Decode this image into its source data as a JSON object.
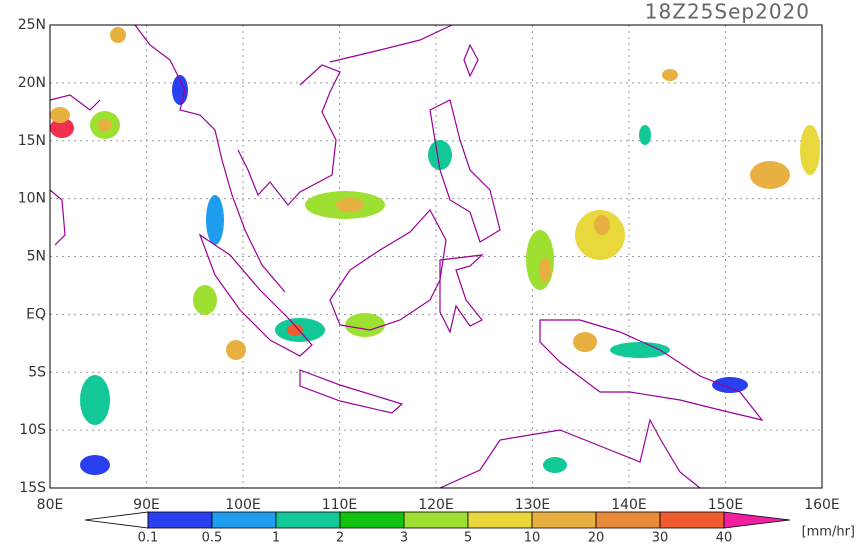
{
  "title": "18Z25Sep2020",
  "map": {
    "lon_range": [
      80,
      160
    ],
    "lat_range": [
      -15,
      25
    ],
    "lon_ticks": [
      {
        "value": 80,
        "label": "80E"
      },
      {
        "value": 90,
        "label": "90E"
      },
      {
        "value": 100,
        "label": "100E"
      },
      {
        "value": 110,
        "label": "110E"
      },
      {
        "value": 120,
        "label": "120E"
      },
      {
        "value": 130,
        "label": "130E"
      },
      {
        "value": 140,
        "label": "140E"
      },
      {
        "value": 150,
        "label": "150E"
      },
      {
        "value": 160,
        "label": "160E"
      }
    ],
    "lat_ticks": [
      {
        "value": 25,
        "label": "25N"
      },
      {
        "value": 20,
        "label": "20N"
      },
      {
        "value": 15,
        "label": "15N"
      },
      {
        "value": 10,
        "label": "10N"
      },
      {
        "value": 5,
        "label": "5N"
      },
      {
        "value": 0,
        "label": "EQ"
      },
      {
        "value": -5,
        "label": "5S"
      },
      {
        "value": -10,
        "label": "10S"
      },
      {
        "value": -15,
        "label": "15S"
      }
    ],
    "grid": true
  },
  "colorbar": {
    "levels": [
      0.1,
      0.5,
      1,
      2,
      3,
      5,
      10,
      20,
      30,
      40
    ],
    "colors": [
      "#ffffff",
      "#2a40ee",
      "#1e9cee",
      "#12c896",
      "#12c412",
      "#9ee032",
      "#e8d83c",
      "#e8b040",
      "#e88c3c",
      "#f05c30",
      "#f0304c",
      "#f020a0"
    ],
    "unit": "[mm/hr]"
  }
}
